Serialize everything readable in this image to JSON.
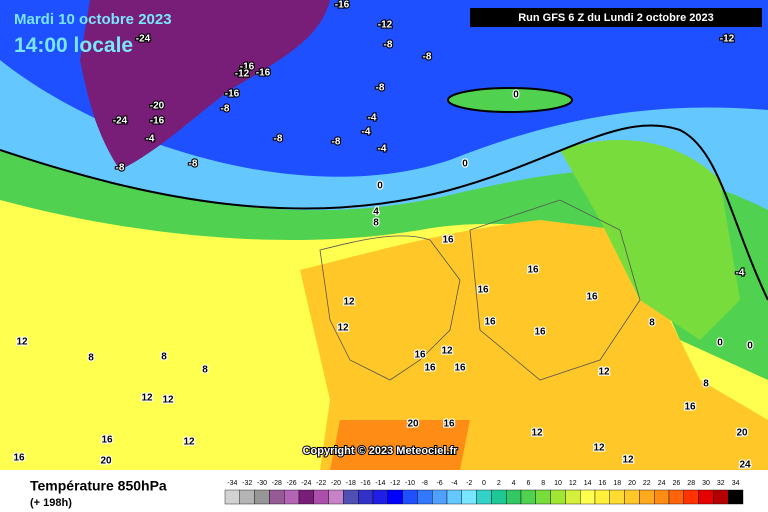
{
  "header": {
    "date": "Mardi 10 octobre 2023",
    "time": "14:00 locale",
    "run": "Run GFS 6 Z du Lundi 2 octobre 2023"
  },
  "copyright": "Copyright © 2023 Meteociel.fr",
  "footer": {
    "title": "Température 850hPa",
    "lead": "(+ 198h)"
  },
  "scale": {
    "values": [
      -34,
      -32,
      -30,
      -28,
      -26,
      -24,
      -22,
      -20,
      -18,
      -16,
      -14,
      -12,
      -10,
      -8,
      -6,
      -4,
      -2,
      0,
      2,
      4,
      6,
      8,
      10,
      12,
      14,
      16,
      18,
      20,
      22,
      24,
      26,
      28,
      30,
      32,
      34
    ],
    "colors": [
      "#d2d2d2",
      "#b4b4b4",
      "#969696",
      "#965a96",
      "#b464b4",
      "#781e78",
      "#aa50aa",
      "#c882c8",
      "#5050b4",
      "#3232c8",
      "#1e1ee6",
      "#0000ff",
      "#1e50ff",
      "#3278ff",
      "#50a0ff",
      "#64c8ff",
      "#78e6ff",
      "#32d2c8",
      "#1ec896",
      "#32c864",
      "#50d250",
      "#78dc3c",
      "#a0e632",
      "#d2f03c",
      "#ffff50",
      "#fff03c",
      "#ffdc32",
      "#ffc828",
      "#ffaa1e",
      "#ff8c14",
      "#ff640a",
      "#ff3200",
      "#e60000",
      "#b40000",
      "#000000"
    ]
  },
  "contour_labels": [
    -16,
    -12,
    -8,
    -8,
    -12,
    -24,
    -16,
    -12,
    -16,
    -8,
    -16,
    -20,
    -8,
    -24,
    -16,
    -4,
    -4,
    -8,
    -8,
    -4,
    -4,
    -8,
    -8,
    0,
    0,
    0,
    4,
    8,
    16,
    16,
    16,
    16,
    12,
    12,
    16,
    16,
    -4,
    8,
    0,
    0,
    12,
    8,
    8,
    8,
    12,
    12,
    12,
    16,
    16,
    16,
    12,
    8,
    16,
    20,
    16,
    12,
    20,
    16,
    12,
    16,
    20,
    24,
    12,
    12
  ]
}
